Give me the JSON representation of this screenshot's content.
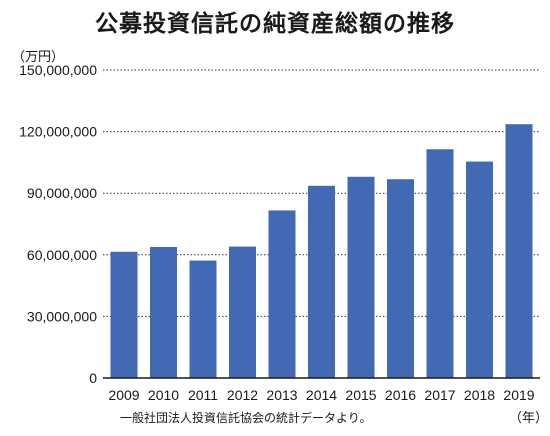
{
  "chart_data": {
    "type": "bar",
    "title": "公募投資信託の純資産総額の推移",
    "ylabel": "（万円）",
    "xlabel": "（年）",
    "categories": [
      "2009",
      "2010",
      "2011",
      "2012",
      "2013",
      "2014",
      "2015",
      "2016",
      "2017",
      "2018",
      "2019"
    ],
    "values": [
      61500000,
      63800000,
      57200000,
      64000000,
      81600000,
      93600000,
      98000000,
      96800000,
      111400000,
      105400000,
      123600000
    ],
    "ylim": [
      0,
      150000000
    ],
    "yticks": [
      0,
      30000000,
      60000000,
      90000000,
      120000000,
      150000000
    ],
    "ytick_labels": [
      "0",
      "30,000,000",
      "60,000,000",
      "90,000,000",
      "120,000,000",
      "150,000,000"
    ],
    "grid": true,
    "bar_color": "#4169b4",
    "source": "一般社団法人投資信託協会の統計データより。"
  }
}
